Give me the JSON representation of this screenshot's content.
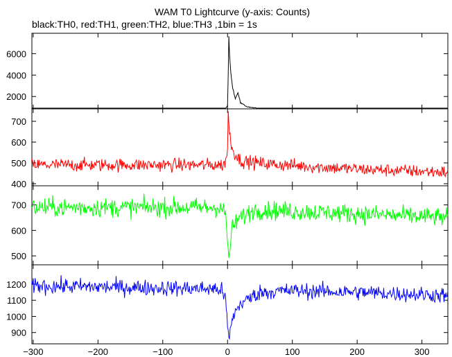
{
  "chart_data": {
    "type": "line",
    "title": "WAM T0 Lightcurve (y-axis: Counts)",
    "subtitle": "black:TH0, red:TH1, green:TH2, blue:TH3 ,1bin = 1s",
    "xlabel": "",
    "ylabel": "",
    "xlim": [
      -302,
      340
    ],
    "x_ticks": [
      -300,
      -200,
      -100,
      0,
      100,
      200,
      300
    ],
    "x_tick_labels": [
      "−300",
      "−200",
      "−100",
      "0",
      "100",
      "200",
      "300"
    ],
    "grid": false,
    "bin_seconds": 1,
    "panels": [
      {
        "name": "TH0",
        "color": "#000000",
        "ylim": [
          850,
          7900
        ],
        "y_ticks": [
          2000,
          4000,
          6000
        ],
        "y_tick_labels": [
          "2000",
          "4000",
          "6000"
        ],
        "profile": [
          {
            "x": -302,
            "y": 760
          },
          {
            "x": -5,
            "y": 760
          },
          {
            "x": 0,
            "y": 1100
          },
          {
            "x": 1,
            "y": 4000
          },
          {
            "x": 2,
            "y": 7700
          },
          {
            "x": 3,
            "y": 6000
          },
          {
            "x": 5,
            "y": 4200
          },
          {
            "x": 8,
            "y": 2800
          },
          {
            "x": 12,
            "y": 1800
          },
          {
            "x": 16,
            "y": 2400
          },
          {
            "x": 20,
            "y": 1400
          },
          {
            "x": 30,
            "y": 1050
          },
          {
            "x": 50,
            "y": 850
          },
          {
            "x": 80,
            "y": 770
          },
          {
            "x": 340,
            "y": 740
          }
        ]
      },
      {
        "name": "TH1",
        "color": "#ff0000",
        "ylim": [
          390,
          760
        ],
        "y_ticks": [
          400,
          500,
          600,
          700
        ],
        "y_tick_labels": [
          "400",
          "500",
          "600",
          "700"
        ],
        "profile": [
          {
            "x": -302,
            "y": 490
          },
          {
            "x": -5,
            "y": 490
          },
          {
            "x": 0,
            "y": 560
          },
          {
            "x": 1,
            "y": 740
          },
          {
            "x": 3,
            "y": 640
          },
          {
            "x": 8,
            "y": 560
          },
          {
            "x": 20,
            "y": 510
          },
          {
            "x": 60,
            "y": 495
          },
          {
            "x": 200,
            "y": 470
          },
          {
            "x": 340,
            "y": 455
          }
        ]
      },
      {
        "name": "TH2",
        "color": "#00ff00",
        "ylim": [
          465,
          775
        ],
        "y_ticks": [
          500,
          600,
          700
        ],
        "y_tick_labels": [
          "500",
          "600",
          "700"
        ],
        "profile": [
          {
            "x": -302,
            "y": 690
          },
          {
            "x": -10,
            "y": 690
          },
          {
            "x": -3,
            "y": 660
          },
          {
            "x": 0,
            "y": 560
          },
          {
            "x": 2,
            "y": 480
          },
          {
            "x": 6,
            "y": 600
          },
          {
            "x": 15,
            "y": 640
          },
          {
            "x": 40,
            "y": 680
          },
          {
            "x": 100,
            "y": 675
          },
          {
            "x": 200,
            "y": 665
          },
          {
            "x": 340,
            "y": 650
          }
        ]
      },
      {
        "name": "TH3",
        "color": "#0000ff",
        "ylim": [
          830,
          1320
        ],
        "y_ticks": [
          900,
          1000,
          1100,
          1200
        ],
        "y_tick_labels": [
          "900",
          "1000",
          "1100",
          "1200"
        ],
        "profile": [
          {
            "x": -302,
            "y": 1190
          },
          {
            "x": -10,
            "y": 1170
          },
          {
            "x": -3,
            "y": 1100
          },
          {
            "x": 0,
            "y": 950
          },
          {
            "x": 2,
            "y": 850
          },
          {
            "x": 8,
            "y": 1000
          },
          {
            "x": 20,
            "y": 1080
          },
          {
            "x": 50,
            "y": 1150
          },
          {
            "x": 100,
            "y": 1160
          },
          {
            "x": 200,
            "y": 1150
          },
          {
            "x": 340,
            "y": 1130
          }
        ]
      }
    ]
  }
}
